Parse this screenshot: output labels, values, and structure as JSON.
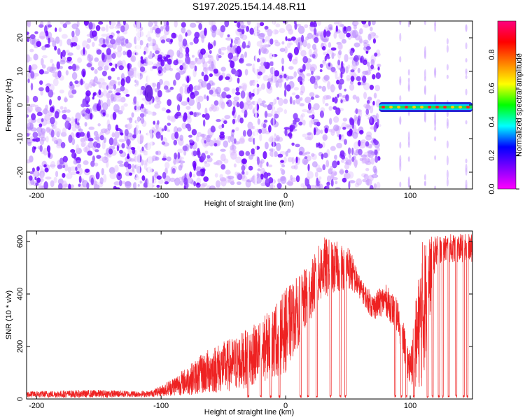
{
  "title": "S197.2025.154.14.48.R11",
  "chart_data": [
    {
      "type": "heatmap",
      "xlabel": "Height of straight line (km)",
      "ylabel": "Frequency (Hz)",
      "xlim": [
        -208,
        150
      ],
      "ylim": [
        -25,
        25
      ],
      "xticks": [
        -200,
        -100,
        0,
        100
      ],
      "yticks": [
        -20,
        -10,
        0,
        10,
        20
      ],
      "noise_region_x": [
        -208,
        75
      ],
      "signal_band": {
        "x": [
          75,
          150
        ],
        "frequency": 0
      },
      "colorbar": {
        "label": "Normalized spectral amplitude",
        "ticks": [
          0.0,
          0.2,
          0.4,
          0.6,
          0.8
        ],
        "range": [
          0,
          1
        ],
        "colors": [
          "#ff00ff",
          "#8000ff",
          "#0000ff",
          "#00ffff",
          "#00ff00",
          "#ffff00",
          "#ff8000",
          "#ff0000",
          "#ff0080"
        ]
      },
      "grid": false
    },
    {
      "type": "line",
      "xlabel": "Height of straight line (km)",
      "ylabel": "SNR (10 * v/v)",
      "xlim": [
        -208,
        150
      ],
      "ylim": [
        0,
        640
      ],
      "xticks": [
        -200,
        -100,
        0,
        100
      ],
      "yticks": [
        0,
        200,
        400,
        600
      ],
      "color": "#ee2222",
      "envelope": {
        "x": [
          -208,
          -150,
          -110,
          -100,
          -80,
          -60,
          -40,
          -20,
          0,
          20,
          30,
          40,
          50,
          60,
          70,
          80,
          90,
          100,
          110,
          120,
          130,
          140,
          150
        ],
        "low": [
          5,
          5,
          8,
          10,
          15,
          20,
          30,
          60,
          100,
          300,
          380,
          400,
          420,
          380,
          300,
          320,
          250,
          40,
          40,
          500,
          520,
          520,
          520
        ],
        "high": [
          30,
          35,
          30,
          50,
          120,
          200,
          240,
          300,
          420,
          520,
          620,
          600,
          600,
          460,
          400,
          440,
          380,
          180,
          620,
          620,
          630,
          630,
          630
        ]
      },
      "dropouts": [
        -30,
        -20,
        -12,
        -5,
        12,
        18,
        25,
        36,
        44,
        48,
        88,
        93,
        97,
        103,
        114,
        118,
        123,
        126,
        131,
        137,
        143,
        146
      ]
    }
  ]
}
